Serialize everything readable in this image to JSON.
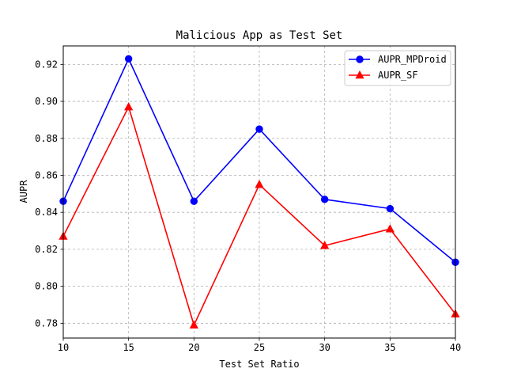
{
  "chart_data": {
    "type": "line",
    "title": "Malicious App as Test Set",
    "xlabel": "Test Set Ratio",
    "ylabel": "AUPR",
    "x": [
      10,
      15,
      20,
      25,
      30,
      35,
      40
    ],
    "xlim": [
      10,
      40
    ],
    "ylim": [
      0.772,
      0.93
    ],
    "xticks": [
      10,
      15,
      20,
      25,
      30,
      35,
      40
    ],
    "yticks": [
      0.78,
      0.8,
      0.82,
      0.84,
      0.86,
      0.88,
      0.9,
      0.92
    ],
    "grid": true,
    "legend_position": "top-right",
    "series": [
      {
        "name": "AUPR_MPDroid",
        "color": "#0000ff",
        "marker": "circle",
        "values": [
          0.846,
          0.923,
          0.846,
          0.885,
          0.847,
          0.842,
          0.813
        ]
      },
      {
        "name": "AUPR_SF",
        "color": "#ff0000",
        "marker": "triangle",
        "values": [
          0.827,
          0.897,
          0.779,
          0.855,
          0.822,
          0.831,
          0.785
        ]
      }
    ]
  }
}
